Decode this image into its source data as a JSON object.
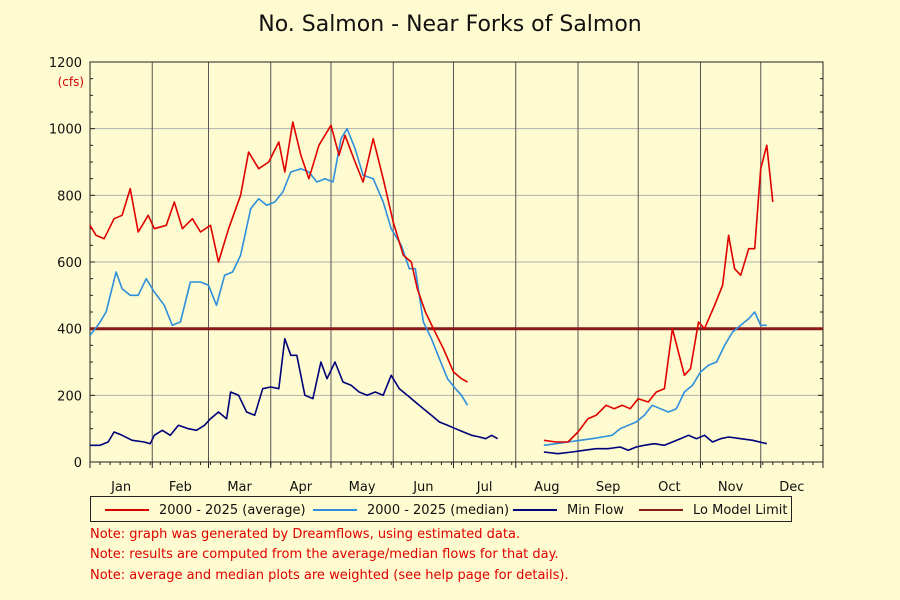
{
  "title": "No. Salmon - Near Forks of Salmon",
  "unit_label": "(cfs)",
  "legend": [
    {
      "label": "2000 - 2025 (average)",
      "color": "#e00000"
    },
    {
      "label": "2000 - 2025 (median)",
      "color": "#2e8fdc"
    },
    {
      "label": "Min Flow",
      "color": "#00007a"
    },
    {
      "label": "Lo Model Limit",
      "color": "#8b1a1a"
    }
  ],
  "notes": [
    "Note: graph was generated by Dreamflows, using estimated data.",
    "Note: results are computed from the average/median flows for that day.",
    "Note: average and median plots are weighted (see help page for details)."
  ],
  "chart_data": {
    "type": "line",
    "title": "No. Salmon - Near Forks of Salmon",
    "ylabel": "(cfs)",
    "xlabel": "",
    "ylim": [
      0,
      1200
    ],
    "xlim": [
      0,
      365
    ],
    "yticks": [
      0,
      200,
      400,
      600,
      800,
      1000,
      1200
    ],
    "grid": true,
    "legend_position": "bottom",
    "months": [
      "Jan",
      "Feb",
      "Mar",
      "Apr",
      "May",
      "Jun",
      "Jul",
      "Aug",
      "Sep",
      "Oct",
      "Nov",
      "Dec"
    ],
    "x_unit": "day of year",
    "series": [
      {
        "name": "2000 - 2025 (average)",
        "color": "#e00000",
        "points": [
          [
            0,
            710
          ],
          [
            3,
            680
          ],
          [
            7,
            670
          ],
          [
            12,
            730
          ],
          [
            16,
            740
          ],
          [
            20,
            820
          ],
          [
            24,
            690
          ],
          [
            29,
            740
          ],
          [
            32,
            700
          ],
          [
            38,
            710
          ],
          [
            42,
            780
          ],
          [
            46,
            700
          ],
          [
            51,
            730
          ],
          [
            55,
            690
          ],
          [
            60,
            710
          ],
          [
            64,
            600
          ],
          [
            69,
            700
          ],
          [
            75,
            800
          ],
          [
            79,
            930
          ],
          [
            84,
            880
          ],
          [
            89,
            900
          ],
          [
            94,
            960
          ],
          [
            97,
            870
          ],
          [
            101,
            1020
          ],
          [
            105,
            920
          ],
          [
            109,
            850
          ],
          [
            114,
            950
          ],
          [
            120,
            1010
          ],
          [
            124,
            920
          ],
          [
            127,
            980
          ],
          [
            132,
            900
          ],
          [
            136,
            840
          ],
          [
            141,
            970
          ],
          [
            146,
            850
          ],
          [
            151,
            720
          ],
          [
            156,
            620
          ],
          [
            160,
            600
          ],
          [
            163,
            520
          ],
          [
            167,
            450
          ],
          [
            171,
            400
          ],
          [
            176,
            340
          ],
          [
            181,
            270
          ],
          [
            185,
            250
          ],
          [
            188,
            240
          ],
          [
            226,
            65
          ],
          [
            232,
            60
          ],
          [
            238,
            60
          ],
          [
            243,
            90
          ],
          [
            248,
            130
          ],
          [
            252,
            140
          ],
          [
            257,
            170
          ],
          [
            261,
            160
          ],
          [
            265,
            170
          ],
          [
            269,
            160
          ],
          [
            273,
            190
          ],
          [
            278,
            180
          ],
          [
            282,
            210
          ],
          [
            286,
            220
          ],
          [
            290,
            400
          ],
          [
            293,
            330
          ],
          [
            296,
            260
          ],
          [
            299,
            280
          ],
          [
            303,
            420
          ],
          [
            306,
            400
          ],
          [
            311,
            470
          ],
          [
            315,
            530
          ],
          [
            318,
            680
          ],
          [
            321,
            580
          ],
          [
            324,
            560
          ],
          [
            328,
            640
          ],
          [
            331,
            640
          ],
          [
            334,
            880
          ],
          [
            337,
            950
          ],
          [
            340,
            780
          ]
        ]
      },
      {
        "name": "2000 - 2025 (median)",
        "color": "#2e8fdc",
        "points": [
          [
            0,
            380
          ],
          [
            4,
            410
          ],
          [
            8,
            450
          ],
          [
            13,
            570
          ],
          [
            16,
            520
          ],
          [
            20,
            500
          ],
          [
            24,
            500
          ],
          [
            28,
            550
          ],
          [
            32,
            510
          ],
          [
            37,
            470
          ],
          [
            41,
            410
          ],
          [
            45,
            420
          ],
          [
            50,
            540
          ],
          [
            55,
            540
          ],
          [
            59,
            530
          ],
          [
            63,
            470
          ],
          [
            67,
            560
          ],
          [
            71,
            570
          ],
          [
            75,
            620
          ],
          [
            80,
            760
          ],
          [
            84,
            790
          ],
          [
            88,
            770
          ],
          [
            92,
            780
          ],
          [
            96,
            810
          ],
          [
            100,
            870
          ],
          [
            105,
            880
          ],
          [
            109,
            870
          ],
          [
            113,
            840
          ],
          [
            117,
            850
          ],
          [
            121,
            840
          ],
          [
            125,
            970
          ],
          [
            128,
            1000
          ],
          [
            132,
            940
          ],
          [
            136,
            860
          ],
          [
            141,
            850
          ],
          [
            146,
            780
          ],
          [
            150,
            700
          ],
          [
            155,
            650
          ],
          [
            159,
            580
          ],
          [
            162,
            580
          ],
          [
            166,
            420
          ],
          [
            170,
            370
          ],
          [
            174,
            310
          ],
          [
            178,
            250
          ],
          [
            182,
            220
          ],
          [
            185,
            200
          ],
          [
            188,
            170
          ],
          [
            226,
            50
          ],
          [
            232,
            55
          ],
          [
            238,
            60
          ],
          [
            244,
            65
          ],
          [
            250,
            70
          ],
          [
            255,
            75
          ],
          [
            260,
            80
          ],
          [
            264,
            100
          ],
          [
            268,
            110
          ],
          [
            272,
            120
          ],
          [
            276,
            140
          ],
          [
            280,
            170
          ],
          [
            284,
            160
          ],
          [
            288,
            150
          ],
          [
            292,
            160
          ],
          [
            296,
            210
          ],
          [
            300,
            230
          ],
          [
            304,
            270
          ],
          [
            308,
            290
          ],
          [
            312,
            300
          ],
          [
            316,
            350
          ],
          [
            320,
            390
          ],
          [
            324,
            410
          ],
          [
            328,
            430
          ],
          [
            331,
            450
          ],
          [
            334,
            410
          ],
          [
            337,
            410
          ]
        ]
      },
      {
        "name": "Min Flow",
        "color": "#00007a",
        "points": [
          [
            0,
            50
          ],
          [
            5,
            50
          ],
          [
            9,
            60
          ],
          [
            12,
            90
          ],
          [
            16,
            80
          ],
          [
            21,
            65
          ],
          [
            27,
            60
          ],
          [
            30,
            55
          ],
          [
            32,
            80
          ],
          [
            36,
            95
          ],
          [
            40,
            80
          ],
          [
            44,
            110
          ],
          [
            49,
            100
          ],
          [
            53,
            95
          ],
          [
            57,
            110
          ],
          [
            60,
            130
          ],
          [
            64,
            150
          ],
          [
            68,
            130
          ],
          [
            70,
            210
          ],
          [
            74,
            200
          ],
          [
            78,
            150
          ],
          [
            82,
            140
          ],
          [
            86,
            220
          ],
          [
            90,
            225
          ],
          [
            94,
            220
          ],
          [
            97,
            370
          ],
          [
            100,
            320
          ],
          [
            103,
            320
          ],
          [
            107,
            200
          ],
          [
            111,
            190
          ],
          [
            115,
            300
          ],
          [
            118,
            250
          ],
          [
            122,
            300
          ],
          [
            126,
            240
          ],
          [
            130,
            230
          ],
          [
            134,
            210
          ],
          [
            138,
            200
          ],
          [
            142,
            210
          ],
          [
            146,
            200
          ],
          [
            150,
            260
          ],
          [
            154,
            220
          ],
          [
            158,
            200
          ],
          [
            162,
            180
          ],
          [
            166,
            160
          ],
          [
            170,
            140
          ],
          [
            174,
            120
          ],
          [
            178,
            110
          ],
          [
            182,
            100
          ],
          [
            186,
            90
          ],
          [
            190,
            80
          ],
          [
            194,
            75
          ],
          [
            197,
            70
          ],
          [
            200,
            80
          ],
          [
            203,
            70
          ],
          [
            226,
            30
          ],
          [
            233,
            25
          ],
          [
            240,
            30
          ],
          [
            246,
            35
          ],
          [
            252,
            40
          ],
          [
            258,
            40
          ],
          [
            264,
            45
          ],
          [
            268,
            35
          ],
          [
            272,
            45
          ],
          [
            276,
            50
          ],
          [
            281,
            55
          ],
          [
            286,
            50
          ],
          [
            290,
            60
          ],
          [
            294,
            70
          ],
          [
            298,
            80
          ],
          [
            302,
            70
          ],
          [
            306,
            80
          ],
          [
            310,
            60
          ],
          [
            314,
            70
          ],
          [
            318,
            75
          ],
          [
            324,
            70
          ],
          [
            330,
            65
          ],
          [
            337,
            55
          ]
        ]
      },
      {
        "name": "Lo Model Limit",
        "color": "#8b1a1a",
        "points": [
          [
            0,
            400
          ],
          [
            365,
            400
          ]
        ]
      }
    ]
  }
}
